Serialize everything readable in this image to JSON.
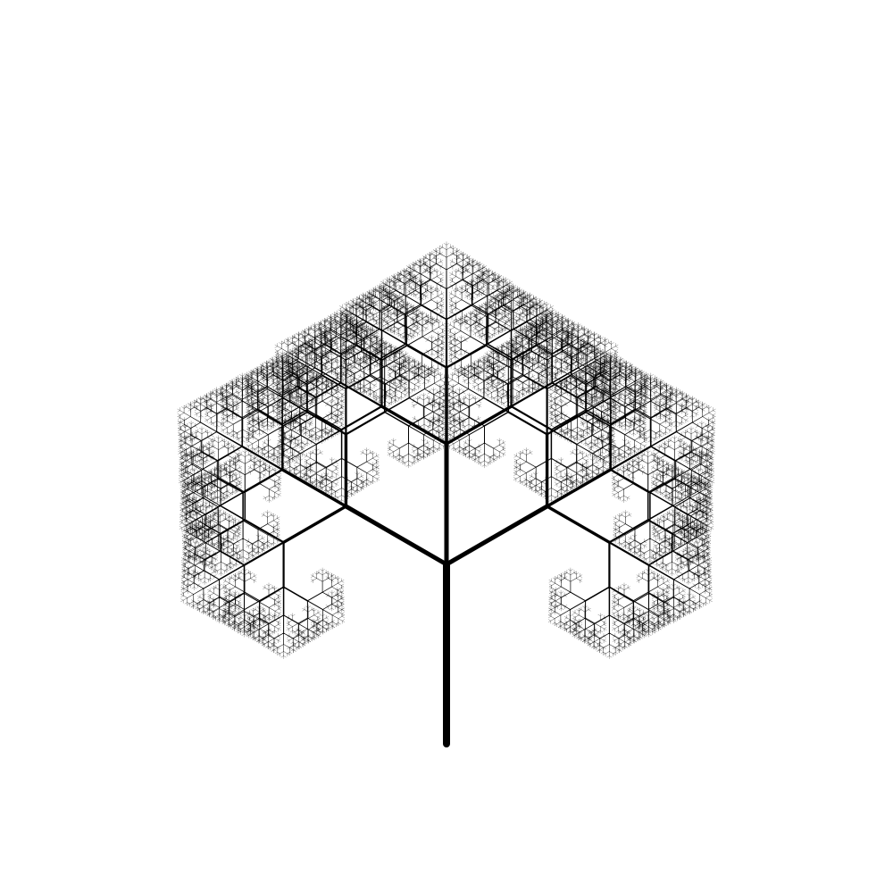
{
  "figure": {
    "background_color": "#ffffff",
    "stroke_color": "#000000",
    "subject": "fractal-tree"
  }
}
